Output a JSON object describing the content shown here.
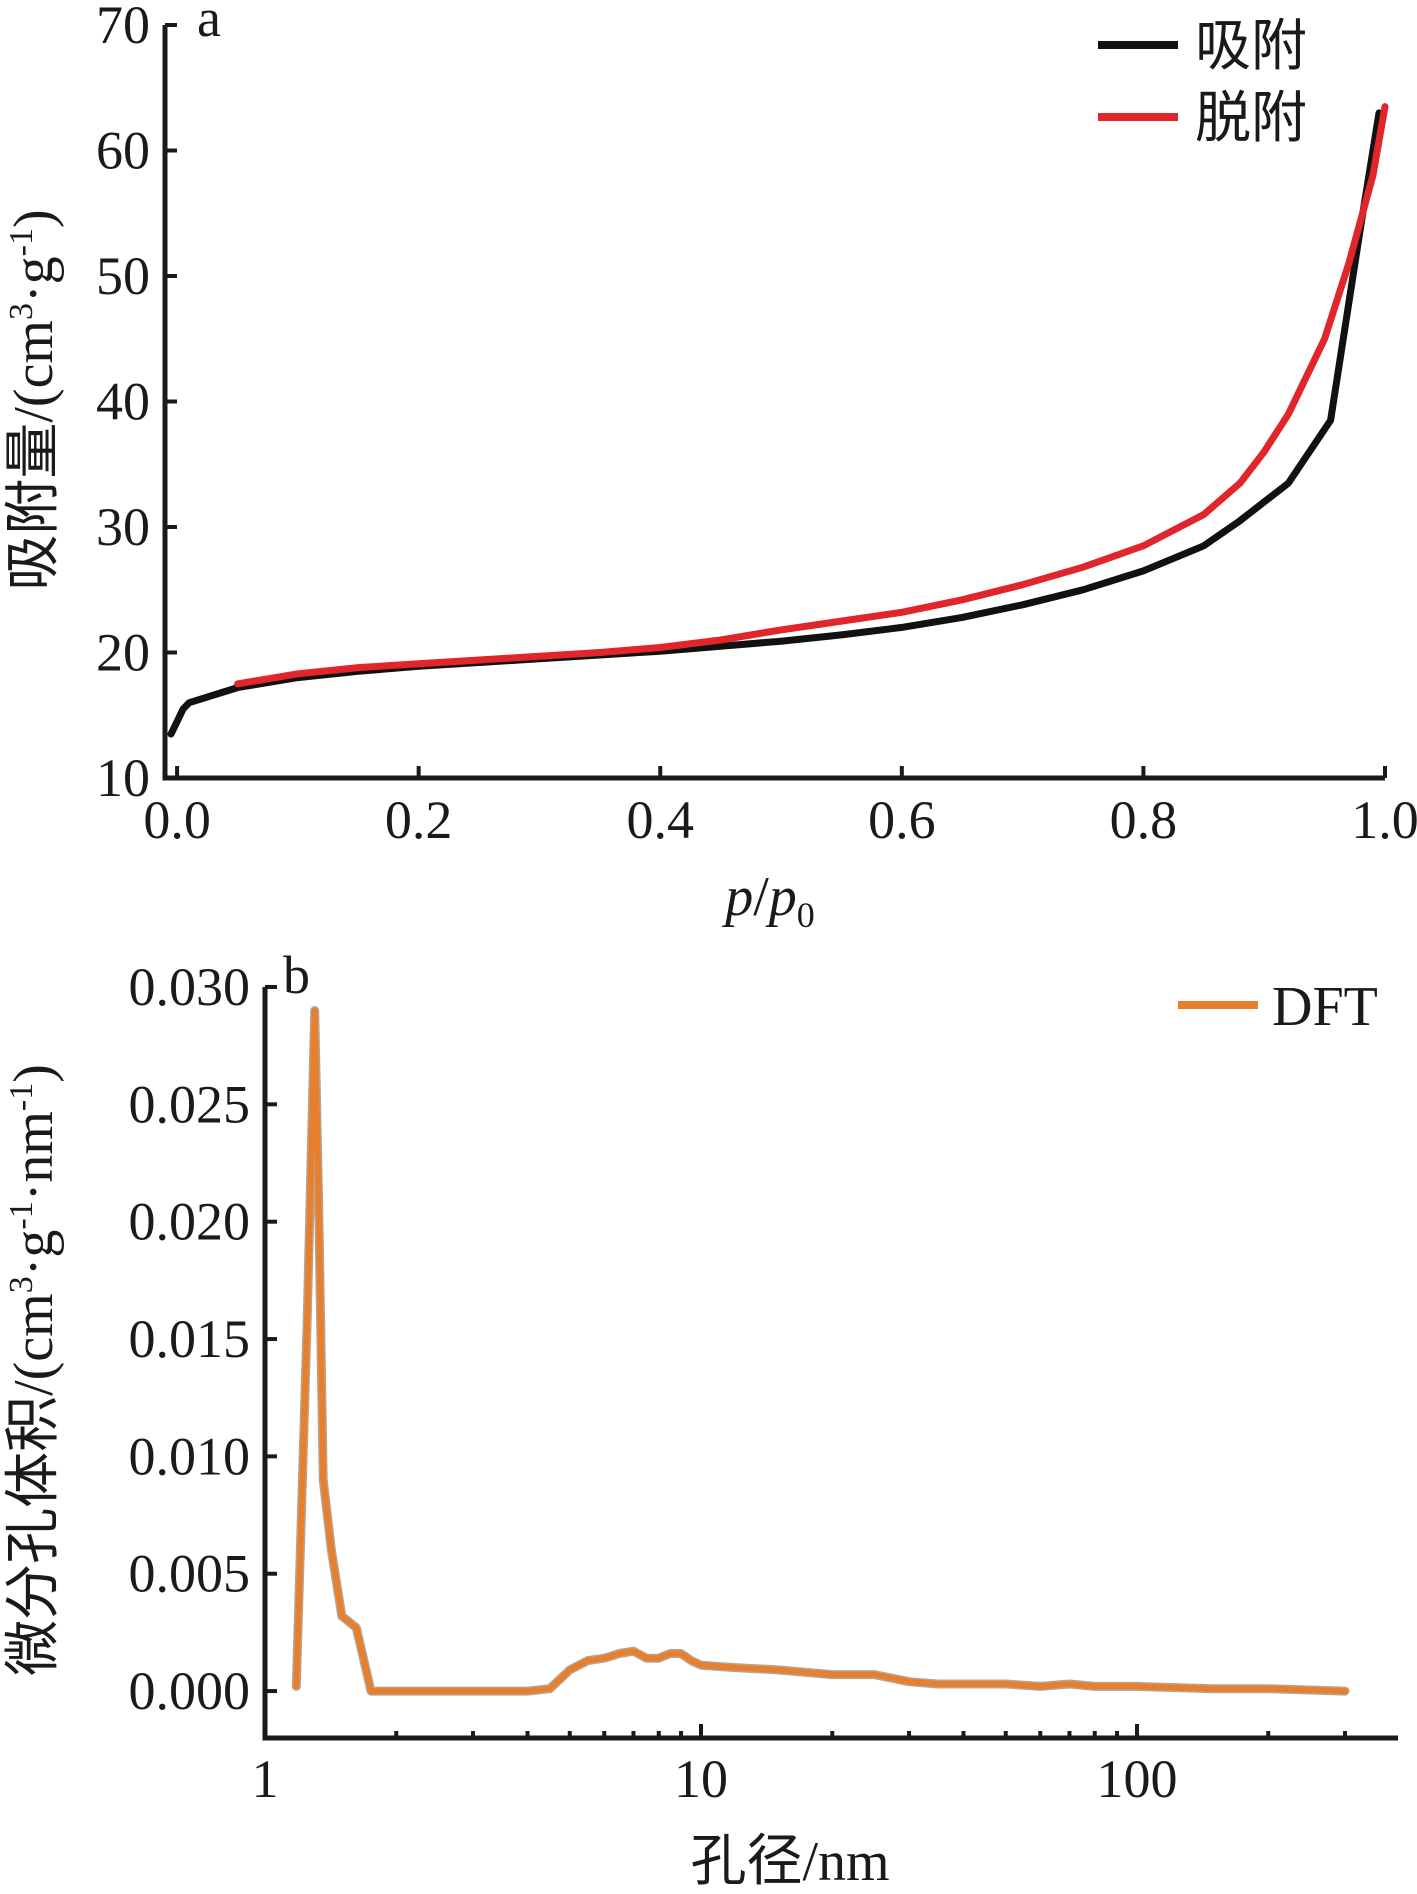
{
  "chart_data": [
    {
      "type": "line",
      "panel_label": "a",
      "xlabel_parts": {
        "p1": "p",
        "slash": "/",
        "p2": "p",
        "sub": "0"
      },
      "ylabel_parts": {
        "main": "吸附量/(cm",
        "sup1": "3",
        "mid": "·g",
        "sup2": "-1",
        "end": ")"
      },
      "xlim": [
        -0.01,
        1.0
      ],
      "ylim": [
        10,
        70
      ],
      "xticks": [
        0.0,
        0.2,
        0.4,
        0.6,
        0.8,
        1.0
      ],
      "xtick_labels": [
        "0.0",
        "0.2",
        "0.4",
        "0.6",
        "0.8",
        "1.0"
      ],
      "yticks": [
        10,
        20,
        30,
        40,
        50,
        60,
        70
      ],
      "ytick_labels": [
        "10",
        "20",
        "30",
        "40",
        "50",
        "60",
        "70"
      ],
      "legend_position": "top-right",
      "series": [
        {
          "name": "吸附",
          "color": "#111111",
          "x": [
            -0.005,
            0.0,
            0.005,
            0.01,
            0.05,
            0.1,
            0.15,
            0.2,
            0.25,
            0.3,
            0.35,
            0.4,
            0.45,
            0.5,
            0.55,
            0.6,
            0.65,
            0.7,
            0.75,
            0.8,
            0.85,
            0.88,
            0.92,
            0.955,
            0.98,
            0.995
          ],
          "y": [
            13.5,
            14.5,
            15.5,
            16.0,
            17.2,
            18.0,
            18.5,
            18.9,
            19.2,
            19.5,
            19.8,
            20.1,
            20.5,
            20.9,
            21.4,
            22.0,
            22.8,
            23.8,
            25.0,
            26.5,
            28.5,
            30.5,
            33.5,
            38.5,
            54.0,
            63.0
          ]
        },
        {
          "name": "脱附",
          "color": "#e0262b",
          "x": [
            0.05,
            0.1,
            0.15,
            0.2,
            0.25,
            0.3,
            0.35,
            0.4,
            0.45,
            0.5,
            0.55,
            0.6,
            0.65,
            0.7,
            0.75,
            0.8,
            0.85,
            0.88,
            0.9,
            0.92,
            0.95,
            0.97,
            0.99,
            1.0
          ],
          "y": [
            17.5,
            18.3,
            18.8,
            19.1,
            19.4,
            19.7,
            20.0,
            20.4,
            21.0,
            21.8,
            22.5,
            23.2,
            24.2,
            25.4,
            26.8,
            28.5,
            31.0,
            33.5,
            36.0,
            39.0,
            45.0,
            51.0,
            58.0,
            63.5
          ]
        }
      ]
    },
    {
      "type": "line",
      "panel_label": "b",
      "x_scale": "log",
      "xlabel": "孔径/nm",
      "ylabel_parts": {
        "main": "微分孔体积/(cm",
        "sup1": "3",
        "mid": "·g",
        "sup2": "-1",
        "mid2": "·nm",
        "sup3": "-1",
        "end": ")"
      },
      "xlim": [
        1,
        350
      ],
      "ylim": [
        -0.002,
        0.03
      ],
      "xticks": [
        1,
        10,
        100
      ],
      "xtick_labels": [
        "1",
        "10",
        "100"
      ],
      "yticks": [
        0.0,
        0.005,
        0.01,
        0.015,
        0.02,
        0.025,
        0.03
      ],
      "ytick_labels": [
        "0.000",
        "0.005",
        "0.010",
        "0.015",
        "0.020",
        "0.025",
        "0.030"
      ],
      "legend_position": "top-right",
      "series": [
        {
          "name": "DFT",
          "color": "#e87f2c",
          "x": [
            1.18,
            1.25,
            1.3,
            1.33,
            1.36,
            1.42,
            1.5,
            1.62,
            1.75,
            2.0,
            3.0,
            4.0,
            4.5,
            5.0,
            5.5,
            6.0,
            6.5,
            7.0,
            7.5,
            8.0,
            8.5,
            9.0,
            9.5,
            10.0,
            12,
            15,
            20,
            25,
            30,
            35,
            40,
            50,
            60,
            70,
            80,
            100,
            150,
            200,
            300
          ],
          "y": [
            0.0002,
            0.016,
            0.029,
            0.02,
            0.009,
            0.006,
            0.0032,
            0.0027,
            0.0,
            0.0,
            0.0,
            0.0,
            0.0001,
            0.0009,
            0.0013,
            0.0014,
            0.0016,
            0.0017,
            0.0014,
            0.0014,
            0.0016,
            0.0016,
            0.0013,
            0.0011,
            0.001,
            0.0009,
            0.0007,
            0.0007,
            0.0004,
            0.0003,
            0.0003,
            0.0003,
            0.0002,
            0.0003,
            0.0002,
            0.0002,
            0.0001,
            0.0001,
            0.0
          ]
        }
      ]
    }
  ]
}
